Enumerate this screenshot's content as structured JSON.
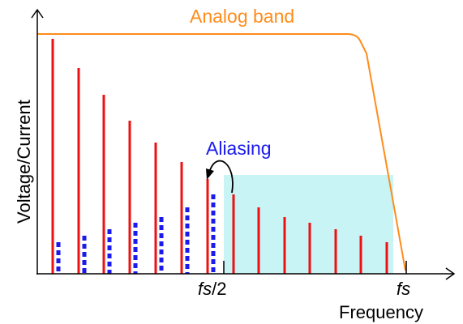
{
  "diagram": {
    "band_label": "Analog band",
    "aliasing_label": "Aliasing",
    "y_axis_label": "Voltage/Current",
    "x_axis_label": "Frequency",
    "tick_half": {
      "italic": "fs",
      "suffix": "/2"
    },
    "tick_full": "fs",
    "colors": {
      "band": "#ff8c1a",
      "signal": "#ee1111",
      "alias": "#1a1aee",
      "nyquist_region": "#c8f4f6",
      "axis": "#000000",
      "aliasing_text": "#1a1aee"
    }
  }
}
